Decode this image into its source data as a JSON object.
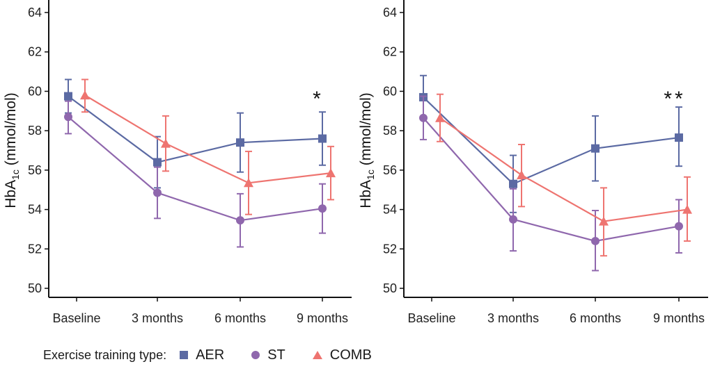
{
  "colors": {
    "AER": "#5b6aa3",
    "ST": "#8f67ad",
    "COMB": "#ee7470",
    "axis": "#111111"
  },
  "legend": {
    "title": "Exercise training type:",
    "entries": [
      {
        "key": "AER",
        "label": "AER",
        "marker": "square-icon"
      },
      {
        "key": "ST",
        "label": "ST",
        "marker": "circle-icon"
      },
      {
        "key": "COMB",
        "label": "COMB",
        "marker": "triangle-icon"
      }
    ]
  },
  "chart_data": [
    {
      "type": "line",
      "ylabel_main": "HbA",
      "ylabel_sub": "1c",
      "ylabel_unit": " (mmol/mol)",
      "ylim": [
        50,
        64
      ],
      "yticks": [
        "50",
        "52",
        "54",
        "56",
        "58",
        "60",
        "62",
        "64"
      ],
      "categories": [
        "Baseline",
        "3 months",
        "6 months",
        "9 months"
      ],
      "annotation": {
        "text": "*",
        "category": "9 months"
      },
      "series": [
        {
          "name": "AER",
          "marker": "square",
          "values": [
            59.75,
            56.4,
            57.4,
            57.6
          ],
          "lower": [
            58.9,
            55.1,
            55.9,
            56.25
          ],
          "upper": [
            60.6,
            57.7,
            58.9,
            58.95
          ]
        },
        {
          "name": "ST",
          "marker": "circle",
          "values": [
            58.7,
            54.85,
            53.45,
            54.05
          ],
          "lower": [
            57.85,
            53.55,
            52.1,
            52.8
          ],
          "upper": [
            59.5,
            56.15,
            54.8,
            55.3
          ]
        },
        {
          "name": "COMB",
          "marker": "triangle",
          "values": [
            59.8,
            57.35,
            55.35,
            55.85
          ],
          "lower": [
            58.95,
            55.95,
            53.75,
            54.5
          ],
          "upper": [
            60.6,
            58.75,
            56.95,
            57.2
          ]
        }
      ]
    },
    {
      "type": "line",
      "ylabel_main": "HbA",
      "ylabel_sub": "1c",
      "ylabel_unit": " (mmol/mol)",
      "ylim": [
        50,
        64
      ],
      "yticks": [
        "50",
        "52",
        "54",
        "56",
        "58",
        "60",
        "62",
        "64"
      ],
      "categories": [
        "Baseline",
        "3 months",
        "6 months",
        "9 months"
      ],
      "annotation": {
        "text": "**",
        "category": "9 months"
      },
      "series": [
        {
          "name": "AER",
          "marker": "square",
          "values": [
            59.7,
            55.3,
            57.1,
            57.65
          ],
          "lower": [
            58.6,
            53.85,
            55.45,
            56.2
          ],
          "upper": [
            60.8,
            56.75,
            58.75,
            59.2
          ]
        },
        {
          "name": "ST",
          "marker": "circle",
          "values": [
            58.65,
            53.5,
            52.4,
            53.15
          ],
          "lower": [
            57.55,
            51.9,
            50.9,
            51.8
          ],
          "upper": [
            59.75,
            55.05,
            53.95,
            54.5
          ]
        },
        {
          "name": "COMB",
          "marker": "triangle",
          "values": [
            58.65,
            55.75,
            53.4,
            54.0
          ],
          "lower": [
            57.45,
            54.15,
            51.65,
            52.4
          ],
          "upper": [
            59.85,
            57.3,
            55.1,
            55.65
          ]
        }
      ]
    }
  ]
}
